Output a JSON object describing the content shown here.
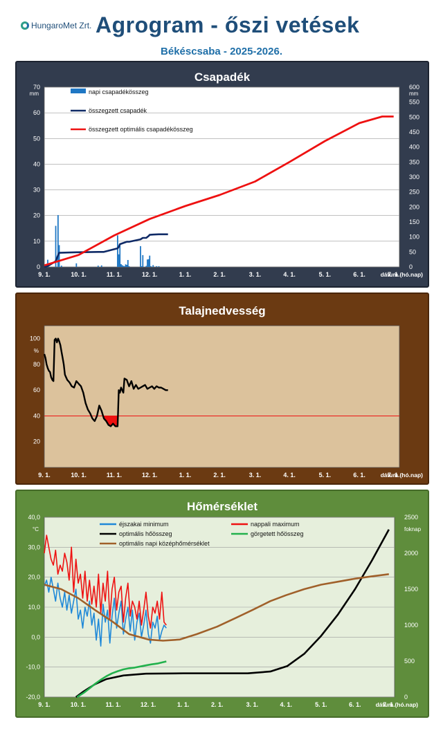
{
  "header": {
    "logo_text": "HungaroMet Zrt.",
    "title": "Agrogram - őszi vetések",
    "subtitle": "Békéscsaba - 2025-2026."
  },
  "x_categories": [
    "9. 1.",
    "10. 1.",
    "11. 1.",
    "12. 1.",
    "1. 1.",
    "2. 1.",
    "3. 1.",
    "4. 1.",
    "5. 1.",
    "6. 1.",
    "7. 1."
  ],
  "x_label": "dátum (hó.nap)",
  "chart_data": [
    {
      "type": "bar",
      "title": "Csapadék",
      "y_unit": "mm",
      "y2_unit": "mm",
      "ylim": [
        0,
        70
      ],
      "y_ticks": [
        0,
        10,
        20,
        30,
        40,
        50,
        60,
        70
      ],
      "y2lim": [
        0,
        600
      ],
      "y2_ticks": [
        0,
        50,
        100,
        150,
        200,
        250,
        300,
        350,
        400,
        450,
        500,
        550,
        600
      ],
      "xlim": [
        0,
        310
      ],
      "grid": true,
      "legend_position": "top-left",
      "bars": {
        "name": "napi csapadékösszeg",
        "color": "#1f77c4",
        "x": [
          3,
          10,
          12,
          13,
          15,
          28,
          47,
          50,
          64,
          65,
          66,
          67,
          68,
          69,
          70,
          71,
          72,
          73,
          74,
          84,
          85,
          86,
          89,
          90,
          91,
          92,
          93,
          95,
          98,
          100
        ],
        "values": [
          2.8,
          16,
          20.2,
          8.5,
          0.5,
          1.4,
          0.5,
          0.6,
          12.3,
          4.9,
          8.5,
          1.1,
          0.7,
          0.4,
          0.3,
          1.0,
          0.8,
          2.7,
          0.3,
          8.1,
          0.3,
          4.6,
          0.4,
          2.9,
          3.0,
          4.4,
          0.3,
          0.7,
          0.3,
          0.3
        ]
      },
      "series": [
        {
          "name": "összegzett csapadék",
          "axis": "right",
          "color": "#0f2a66",
          "x": [
            0,
            3,
            10,
            12,
            13,
            28,
            47,
            50,
            52,
            64,
            65,
            66,
            72,
            74,
            84,
            86,
            89,
            90,
            91,
            92,
            95,
            100,
            108
          ],
          "y": [
            0,
            3,
            19,
            39,
            47,
            49,
            50,
            50,
            50,
            62,
            67,
            76,
            84,
            84,
            92,
            97,
            97,
            100,
            103,
            107,
            108,
            109,
            109
          ]
        },
        {
          "name": "összegzett optimális csapadékösszeg",
          "axis": "right",
          "color": "#ee1111",
          "x": [
            0,
            30,
            61,
            92,
            123,
            153,
            184,
            214,
            245,
            275,
            295,
            305
          ],
          "y": [
            5,
            40,
            105,
            160,
            203,
            240,
            285,
            350,
            420,
            480,
            502,
            502
          ]
        }
      ]
    },
    {
      "type": "line",
      "title": "Talajnedvesség",
      "y_unit": "%",
      "ylim": [
        0,
        110
      ],
      "y_ticks": [
        20,
        40,
        60,
        80,
        100
      ],
      "xlim": [
        0,
        310
      ],
      "threshold": 40,
      "threshold_color": "#ee1111",
      "series": [
        {
          "name": "",
          "color": "#000000",
          "x": [
            0,
            1,
            2,
            3,
            4,
            5,
            6,
            7,
            8,
            9,
            10,
            11,
            12,
            13,
            14,
            15,
            16,
            17,
            18,
            19,
            20,
            22,
            24,
            26,
            28,
            30,
            32,
            34,
            36,
            38,
            40,
            42,
            44,
            46,
            48,
            50,
            52,
            54,
            56,
            58,
            60,
            62,
            64,
            65,
            66,
            67,
            68,
            69,
            70,
            72,
            74,
            76,
            78,
            80,
            82,
            84,
            86,
            88,
            90,
            92,
            94,
            96,
            98,
            100,
            102,
            104,
            106,
            108
          ],
          "y": [
            88,
            85,
            80,
            77,
            75,
            74,
            70,
            68,
            67,
            99,
            100,
            97,
            100,
            98,
            95,
            90,
            85,
            80,
            72,
            70,
            68,
            66,
            63,
            62,
            67,
            65,
            63,
            58,
            50,
            45,
            42,
            38,
            36,
            40,
            48,
            44,
            38,
            36,
            33,
            32,
            34,
            32,
            32,
            60,
            58,
            62,
            60,
            58,
            69,
            68,
            63,
            67,
            61,
            64,
            61,
            62,
            63,
            64,
            61,
            62,
            63,
            61,
            63,
            62,
            62,
            61,
            60,
            60
          ]
        }
      ]
    },
    {
      "type": "line",
      "title": "Hőmérséklet",
      "y_unit": "°C",
      "y2_unit": "foknap",
      "ylim": [
        -20,
        40
      ],
      "y_ticks": [
        "-20,0",
        "-10,0",
        "0,0",
        "10,0",
        "20,0",
        "30,0",
        "40,0"
      ],
      "y2lim": [
        0,
        2500
      ],
      "y2_ticks": [
        0,
        500,
        1000,
        1500,
        2000,
        2500
      ],
      "xlim": [
        0,
        310
      ],
      "grid": true,
      "legend_position": "top-center",
      "series": [
        {
          "name": "éjszakai minimum",
          "axis": "left",
          "color": "#1e88d8",
          "x": [
            0,
            2,
            4,
            6,
            8,
            10,
            12,
            14,
            16,
            18,
            20,
            22,
            24,
            26,
            28,
            30,
            32,
            34,
            36,
            38,
            40,
            42,
            44,
            46,
            48,
            50,
            52,
            54,
            56,
            58,
            60,
            62,
            64,
            66,
            68,
            70,
            72,
            74,
            76,
            78,
            80,
            82,
            84,
            86,
            88,
            90,
            92,
            94,
            96,
            98,
            100,
            102,
            104,
            106,
            108
          ],
          "y": [
            17,
            19,
            15,
            20,
            16,
            12,
            18,
            13,
            10,
            15,
            9,
            14,
            8,
            12,
            16,
            6,
            9,
            3,
            10,
            7,
            12,
            4,
            8,
            -1,
            6,
            -3,
            11,
            5,
            9,
            -2,
            7,
            13,
            3,
            8,
            12,
            1,
            6,
            10,
            2,
            9,
            -1,
            5,
            8,
            0,
            4,
            9,
            1,
            -2,
            5,
            3,
            7,
            -1,
            2,
            4,
            3
          ]
        },
        {
          "name": "nappali maximum",
          "axis": "left",
          "color": "#ee1111",
          "x": [
            0,
            2,
            4,
            6,
            8,
            10,
            12,
            14,
            16,
            18,
            20,
            22,
            24,
            26,
            28,
            30,
            32,
            34,
            36,
            38,
            40,
            42,
            44,
            46,
            48,
            50,
            52,
            54,
            56,
            58,
            60,
            62,
            64,
            66,
            68,
            70,
            72,
            74,
            76,
            78,
            80,
            82,
            84,
            86,
            88,
            90,
            92,
            94,
            96,
            98,
            100,
            102,
            104,
            106,
            108
          ],
          "y": [
            28,
            34,
            30,
            26,
            24,
            29,
            21,
            24,
            22,
            28,
            25,
            19,
            30,
            15,
            26,
            18,
            21,
            13,
            22,
            12,
            19,
            11,
            17,
            10,
            21,
            8,
            18,
            12,
            22,
            6,
            16,
            20,
            9,
            15,
            17,
            5,
            13,
            18,
            7,
            12,
            10,
            6,
            12,
            4,
            9,
            15,
            7,
            3,
            10,
            8,
            12,
            6,
            15,
            5,
            4
          ]
        },
        {
          "name": "optimális hőösszeg",
          "axis": "right",
          "color": "#000000",
          "x": [
            28,
            35,
            45,
            55,
            70,
            90,
            123,
            153,
            180,
            200,
            215,
            230,
            245,
            260,
            275,
            290,
            305
          ],
          "y": [
            0,
            80,
            180,
            250,
            300,
            325,
            330,
            330,
            330,
            355,
            430,
            600,
            850,
            1150,
            1500,
            1900,
            2330
          ]
        },
        {
          "name": "görgetett hőösszeg",
          "axis": "right",
          "color": "#22b14c",
          "x": [
            29,
            35,
            40,
            45,
            50,
            55,
            60,
            65,
            70,
            75,
            80,
            85,
            90,
            95,
            100,
            105,
            108
          ],
          "y": [
            0,
            60,
            120,
            185,
            240,
            290,
            330,
            360,
            385,
            400,
            410,
            425,
            440,
            455,
            465,
            485,
            495
          ]
        },
        {
          "name": "optimális napi középhőmérséklet",
          "axis": "left",
          "color": "#a0602a",
          "x": [
            0,
            15,
            30,
            45,
            61,
            75,
            92,
            105,
            120,
            135,
            153,
            170,
            184,
            200,
            214,
            230,
            245,
            260,
            275,
            290,
            305
          ],
          "y": [
            17.5,
            16,
            13,
            9,
            5,
            1,
            -0.8,
            -1.2,
            -0.8,
            1,
            3.5,
            6.5,
            9,
            12,
            14,
            16,
            17.5,
            18.5,
            19.5,
            20.3,
            21
          ]
        }
      ]
    }
  ]
}
